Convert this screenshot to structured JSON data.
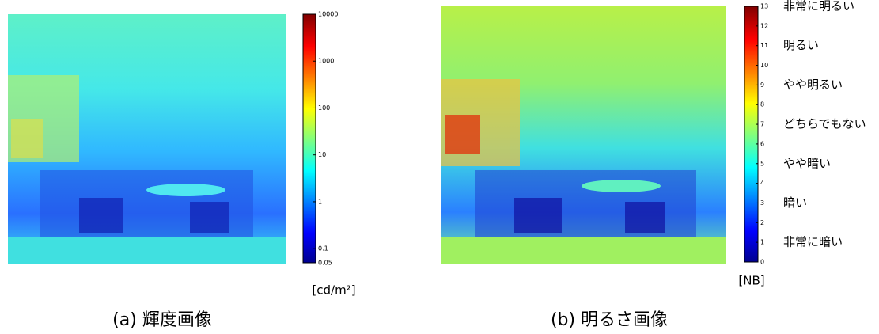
{
  "panels": [
    {
      "caption": "(a) 輝度画像",
      "colorbar": {
        "scale": "log",
        "lim": [
          0.05,
          10000
        ],
        "ticks": [
          0.05,
          0.1,
          1,
          10,
          100,
          1000,
          10000
        ],
        "unit": "[cd/m²]"
      }
    },
    {
      "caption": "(b) 明るさ画像",
      "colorbar": {
        "scale": "linear",
        "lim": [
          0,
          13
        ],
        "ticks": [
          0,
          1,
          2,
          3,
          4,
          5,
          6,
          7,
          8,
          9,
          10,
          11,
          12,
          13
        ],
        "unit": "[NB]",
        "levels": [
          {
            "value": 13,
            "label": "非常に明るい"
          },
          {
            "value": 11,
            "label": "明るい"
          },
          {
            "value": 9,
            "label": "やや明るい"
          },
          {
            "value": 7,
            "label": "どちらでもない"
          },
          {
            "value": 5,
            "label": "やや暗い"
          },
          {
            "value": 3,
            "label": "暗い"
          },
          {
            "value": 1,
            "label": "非常に暗い"
          }
        ]
      }
    }
  ]
}
